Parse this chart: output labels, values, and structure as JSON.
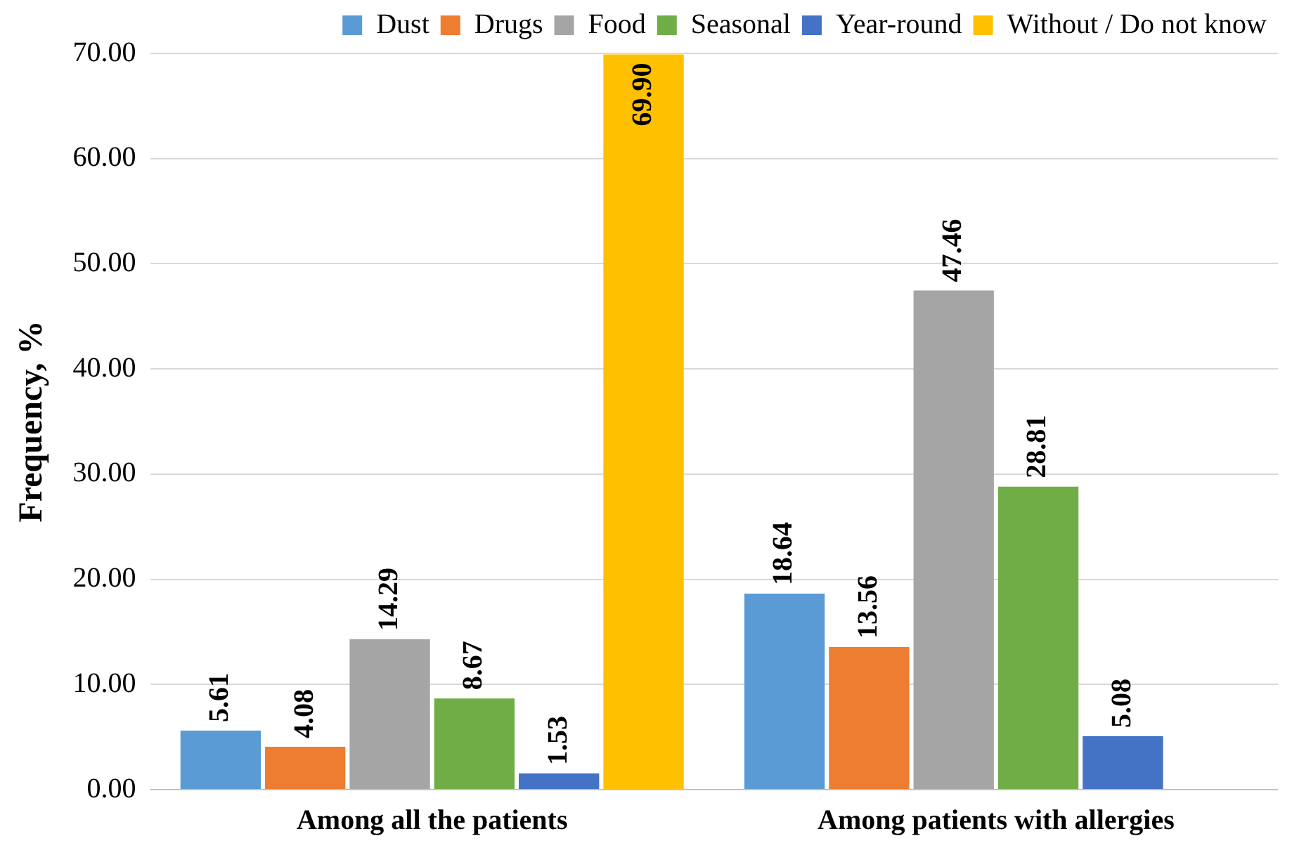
{
  "chart_data": {
    "type": "bar",
    "ylabel": "Frequency, %",
    "categories": [
      "Among all the patients",
      "Among patients with allergies"
    ],
    "series": [
      {
        "name": "Dust",
        "color": "#5b9bd5",
        "values": [
          5.61,
          18.64
        ],
        "value_labels": [
          "5.61",
          "18.64"
        ]
      },
      {
        "name": "Drugs",
        "color": "#ed7d31",
        "values": [
          4.08,
          13.56
        ],
        "value_labels": [
          "4.08",
          "13.56"
        ]
      },
      {
        "name": "Food",
        "color": "#a5a5a5",
        "values": [
          14.29,
          47.46
        ],
        "value_labels": [
          "14.29",
          "47.46"
        ]
      },
      {
        "name": "Seasonal",
        "color": "#70ad47",
        "values": [
          8.67,
          28.81
        ],
        "value_labels": [
          "8.67",
          "28.81"
        ]
      },
      {
        "name": "Year-round",
        "color": "#4472c4",
        "values": [
          1.53,
          5.08
        ],
        "value_labels": [
          "1.53",
          "5.08"
        ]
      },
      {
        "name": "Without / Do not know",
        "color": "#ffc000",
        "values": [
          69.9,
          null
        ],
        "value_labels": [
          "69.90",
          null
        ]
      }
    ],
    "ylim": [
      0,
      70
    ],
    "yticks": [
      {
        "value": 0,
        "label": "0.00"
      },
      {
        "value": 10,
        "label": "10.00"
      },
      {
        "value": 20,
        "label": "20.00"
      },
      {
        "value": 30,
        "label": "30.00"
      },
      {
        "value": 40,
        "label": "40.00"
      },
      {
        "value": 50,
        "label": "50.00"
      },
      {
        "value": 60,
        "label": "60.00"
      },
      {
        "value": 70,
        "label": "70.00"
      }
    ],
    "grid": "y",
    "legend": "top"
  }
}
